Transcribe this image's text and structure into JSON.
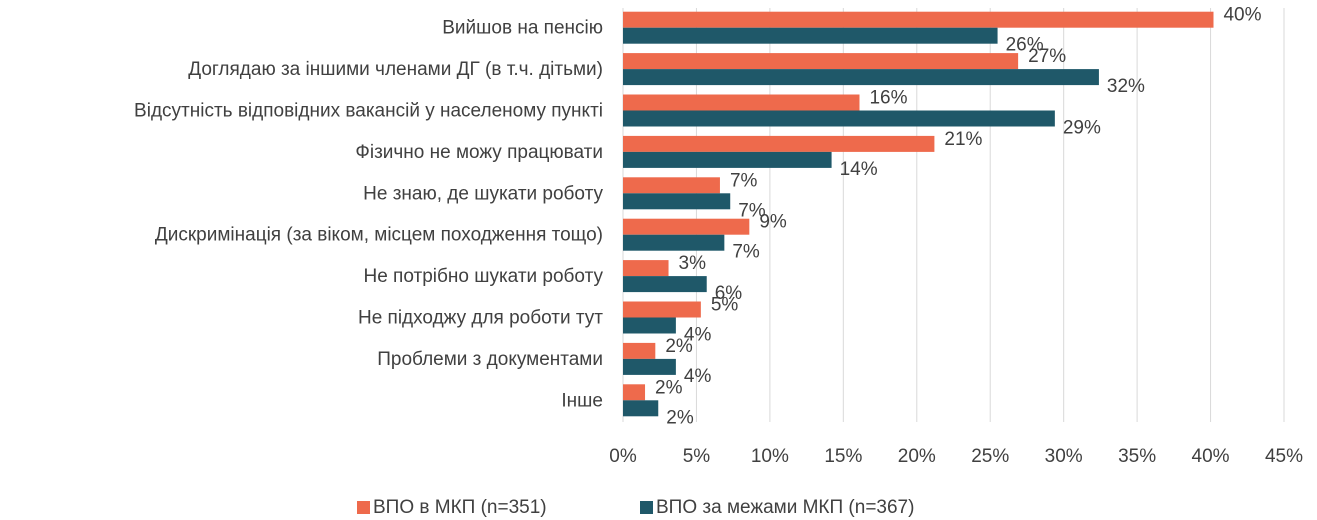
{
  "chart_data": {
    "type": "bar",
    "orientation": "horizontal",
    "categories": [
      "Вийшов на пенсію",
      "Доглядаю за іншими членами ДГ (в т.ч. дітьми)",
      "Відсутність відповідних вакансій у населеному пункті",
      "Фізично не можу працювати",
      "Не знаю, де шукати роботу",
      "Дискримінація (за віком, місцем походження тощо)",
      "Не потрібно шукати роботу",
      "Не підходжу для роботи тут",
      "Проблеми з документами",
      "Інше"
    ],
    "series": [
      {
        "name": "ВПО в МКП (n=351)",
        "color": "#ee6a4c",
        "values": [
          40.2,
          26.9,
          16.1,
          21.2,
          6.6,
          8.6,
          3.1,
          5.3,
          2.2,
          1.5
        ],
        "value_labels": [
          "40%",
          "27%",
          "16%",
          "21%",
          "7%",
          "9%",
          "3%",
          "5%",
          "2%",
          "2%"
        ]
      },
      {
        "name": "ВПО за межами МКП (n=367)",
        "color": "#1f5869",
        "values": [
          25.5,
          32.4,
          29.4,
          14.2,
          7.3,
          6.9,
          5.7,
          3.6,
          3.6,
          2.4
        ],
        "value_labels": [
          "26%",
          "32%",
          "29%",
          "14%",
          "7%",
          "7%",
          "6%",
          "4%",
          "4%",
          "2%"
        ]
      }
    ],
    "xlim": [
      0,
      45
    ],
    "xticks": [
      {
        "value": 0,
        "label": "0%"
      },
      {
        "value": 5,
        "label": "5%"
      },
      {
        "value": 10,
        "label": "10%"
      },
      {
        "value": 15,
        "label": "15%"
      },
      {
        "value": 20,
        "label": "20%"
      },
      {
        "value": 25,
        "label": "25%"
      },
      {
        "value": 30,
        "label": "30%"
      },
      {
        "value": 35,
        "label": "35%"
      },
      {
        "value": 40,
        "label": "40%"
      },
      {
        "value": 45,
        "label": "45%"
      }
    ],
    "grid": true,
    "legend": "bottom"
  }
}
